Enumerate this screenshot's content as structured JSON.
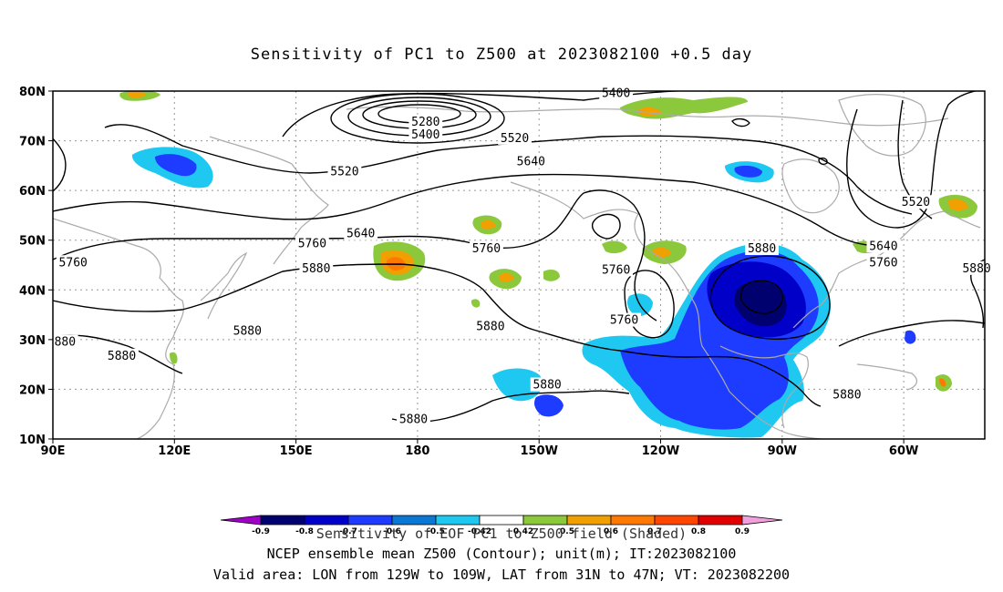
{
  "title": "Sensitivity of PC1 to Z500 at 2023082100 +0.5 day",
  "map": {
    "lat_labels": [
      "80N",
      "70N",
      "60N",
      "50N",
      "40N",
      "30N",
      "20N",
      "10N"
    ],
    "lon_labels": [
      "90E",
      "120E",
      "150E",
      "180",
      "150W",
      "120W",
      "90W",
      "60W"
    ],
    "lat_values": [
      80,
      70,
      60,
      50,
      40,
      30,
      20,
      10
    ],
    "lon_values": [
      90,
      120,
      150,
      180,
      210,
      240,
      270,
      300
    ],
    "extent": {
      "lon_min": 90,
      "lon_max": 320,
      "lat_min": 10,
      "lat_max": 80
    },
    "gridlines": "dotted",
    "coastline_color": "#aaaaaa",
    "contour_color": "#000000",
    "contour_labels": [
      {
        "text": "5400",
        "lon": 229,
        "lat": 79.5
      },
      {
        "text": "5280",
        "lon": 182,
        "lat": 73.8
      },
      {
        "text": "5400",
        "lon": 182,
        "lat": 71.2
      },
      {
        "text": "5520",
        "lon": 204,
        "lat": 70.5
      },
      {
        "text": "5640",
        "lon": 208,
        "lat": 65.8
      },
      {
        "text": "5520",
        "lon": 162,
        "lat": 63.8
      },
      {
        "text": "5520",
        "lon": 303,
        "lat": 57.6
      },
      {
        "text": "5640",
        "lon": 166,
        "lat": 51.3
      },
      {
        "text": "5640",
        "lon": 295,
        "lat": 48.8
      },
      {
        "text": "5760",
        "lon": 154,
        "lat": 49.3
      },
      {
        "text": "5760",
        "lon": 197,
        "lat": 48.3
      },
      {
        "text": "5760",
        "lon": 95,
        "lat": 45.5
      },
      {
        "text": "5760",
        "lon": 295,
        "lat": 45.5
      },
      {
        "text": "5880",
        "lon": 265,
        "lat": 48.3
      },
      {
        "text": "5880",
        "lon": 155,
        "lat": 44.3
      },
      {
        "text": "5880",
        "lon": 318,
        "lat": 44.3
      },
      {
        "text": "5760",
        "lon": 229,
        "lat": 44.0
      },
      {
        "text": "5760",
        "lon": 231,
        "lat": 33.9
      },
      {
        "text": "5880",
        "lon": 198,
        "lat": 32.6
      },
      {
        "text": "5880",
        "lon": 138,
        "lat": 31.7
      },
      {
        "text": "880",
        "lon": 93,
        "lat": 29.5
      },
      {
        "text": "5880",
        "lon": 107,
        "lat": 26.7
      },
      {
        "text": "5880",
        "lon": 212,
        "lat": 20.9
      },
      {
        "text": "5880",
        "lon": 286,
        "lat": 18.9
      },
      {
        "text": "5880",
        "lon": 179,
        "lat": 13.9
      }
    ]
  },
  "colorbar": {
    "labels": [
      "-0.9",
      "-0.8",
      "-0.7",
      "-0.6",
      "-0.5",
      "-0.42",
      "0.42",
      "0.5",
      "0.6",
      "0.7",
      "0.8",
      "0.9"
    ],
    "colors": [
      "#a000c8",
      "#00006e",
      "#0000c8",
      "#1e3cff",
      "#0a78d2",
      "#1ec8f0",
      "#ffffff",
      "#8cc83c",
      "#f0a000",
      "#ff7800",
      "#ff4600",
      "#e10000",
      "#f0a0dc"
    ]
  },
  "footer": {
    "line1": "Sensitivity of EOF PC1 to Z500 field (Shaded)",
    "line2": "NCEP ensemble mean Z500 (Contour); unit(m); IT:2023082100",
    "line3": "Valid area: LON from 129W to 109W, LAT from 31N to 47N; VT: 2023082200"
  }
}
